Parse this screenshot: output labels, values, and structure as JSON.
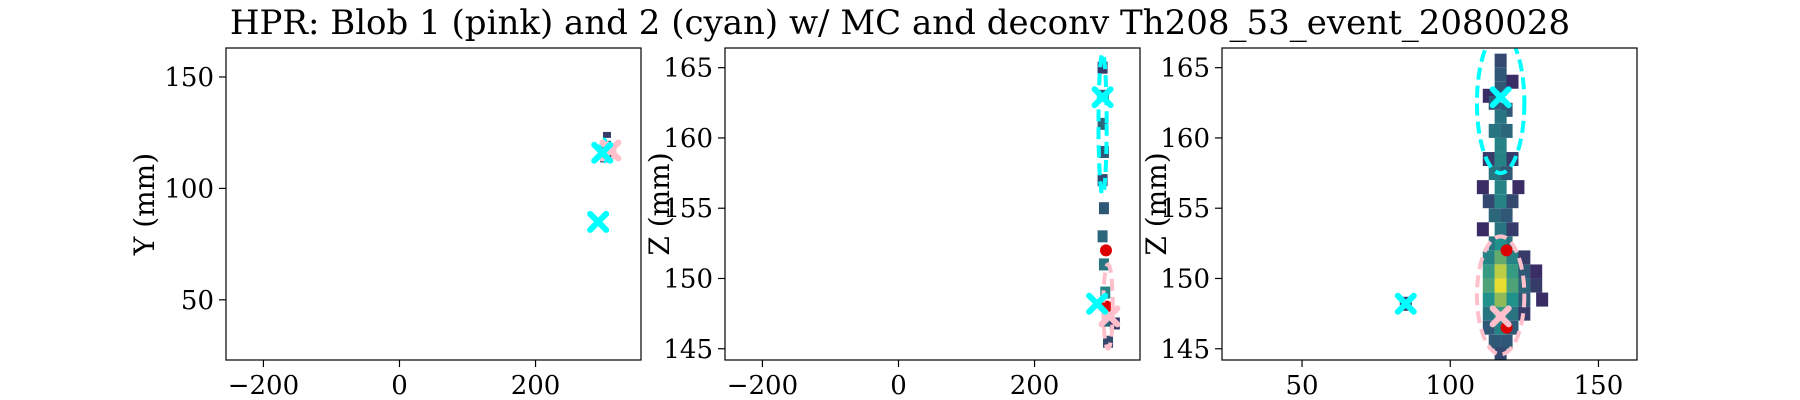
{
  "figure": {
    "title": "HPR: Blob 1 (pink) and 2 (cyan) w/ MC and deconv Th208_53_event_2080028"
  },
  "colors": {
    "blob1": "#ffc0cb",
    "blob2": "#00ffff",
    "mc": "#dd0000",
    "hits_low": "#440154",
    "hits_mid": "#21918c",
    "hits_high": "#fde725"
  },
  "chart_data": [
    {
      "type": "heatmap",
      "panel": "xy",
      "xlabel": "",
      "ylabel": "Y (mm)",
      "xlim": [
        -255,
        355
      ],
      "ylim": [
        23,
        163
      ],
      "xticks": [
        -200,
        0,
        200
      ],
      "yticks": [
        50,
        100,
        150
      ],
      "cells": [
        {
          "x": 305,
          "y": 124,
          "v": 0.2
        },
        {
          "x": 305,
          "y": 120,
          "v": 0.3
        },
        {
          "x": 303,
          "y": 116,
          "v": 0.35
        },
        {
          "x": 307,
          "y": 118,
          "v": 0.3
        },
        {
          "x": 301,
          "y": 113,
          "v": 0.2
        },
        {
          "x": 309,
          "y": 114,
          "v": 0.25
        }
      ],
      "mc_points": [
        {
          "x": 306,
          "y": 118
        }
      ],
      "blob1_centers": [
        {
          "x": 310,
          "y": 117
        }
      ],
      "blob2_centers": [
        {
          "x": 298,
          "y": 116
        },
        {
          "x": 292,
          "y": 85
        }
      ],
      "blob1_ellipses": [
        {
          "cx": 310,
          "cy": 117,
          "rx": 6,
          "ry": 4
        }
      ],
      "blob2_ellipses": [
        {
          "cx": 300,
          "cy": 117,
          "rx": 5,
          "ry": 5
        }
      ]
    },
    {
      "type": "heatmap",
      "panel": "xz",
      "xlabel": "",
      "ylabel": "Z (mm)",
      "xlim": [
        -255,
        355
      ],
      "ylim": [
        144.2,
        166.4
      ],
      "xticks": [
        -200,
        0,
        200
      ],
      "yticks": [
        145,
        150,
        155,
        160,
        165
      ],
      "cells": [
        {
          "x": 300,
          "y": 165,
          "v": 0.2
        },
        {
          "x": 302,
          "y": 163,
          "v": 0.3
        },
        {
          "x": 300,
          "y": 161,
          "v": 0.35
        },
        {
          "x": 302,
          "y": 159,
          "v": 0.3
        },
        {
          "x": 300,
          "y": 157,
          "v": 0.25
        },
        {
          "x": 302,
          "y": 155,
          "v": 0.3
        },
        {
          "x": 300,
          "y": 153,
          "v": 0.35
        },
        {
          "x": 302,
          "y": 151,
          "v": 0.4
        },
        {
          "x": 304,
          "y": 149,
          "v": 0.45
        },
        {
          "x": 306,
          "y": 147,
          "v": 0.35
        },
        {
          "x": 308,
          "y": 145.5,
          "v": 0.25
        },
        {
          "x": 318,
          "y": 146.8,
          "v": 0.2
        }
      ],
      "mc_points": [
        {
          "x": 305,
          "y": 152
        },
        {
          "x": 306,
          "y": 148
        }
      ],
      "blob1_centers": [
        {
          "x": 310,
          "y": 147.3
        }
      ],
      "blob2_centers": [
        {
          "x": 300,
          "y": 162.9
        },
        {
          "x": 292,
          "y": 148.2
        }
      ],
      "blob1_ellipses": [
        {
          "cx": 308,
          "cy": 148,
          "rx": 7,
          "ry": 3
        }
      ],
      "blob2_ellipses": [
        {
          "cx": 300,
          "cy": 161,
          "rx": 6,
          "ry": 5
        }
      ]
    },
    {
      "type": "heatmap",
      "panel": "yz",
      "xlabel": "",
      "ylabel": "Z (mm)",
      "xlim": [
        23,
        163
      ],
      "ylim": [
        144.2,
        166.4
      ],
      "xticks": [
        50,
        100,
        150
      ],
      "yticks": [
        145,
        150,
        155,
        160,
        165
      ],
      "cells": [
        {
          "x": 117,
          "y": 165.5,
          "v": 0.25
        },
        {
          "x": 117,
          "y": 164.5,
          "v": 0.3
        },
        {
          "x": 117,
          "y": 163.5,
          "v": 0.3
        },
        {
          "x": 113,
          "y": 163,
          "v": 0.15
        },
        {
          "x": 121,
          "y": 164,
          "v": 0.15
        },
        {
          "x": 115,
          "y": 162.5,
          "v": 0.3
        },
        {
          "x": 119,
          "y": 162,
          "v": 0.3
        },
        {
          "x": 117,
          "y": 161.5,
          "v": 0.4
        },
        {
          "x": 115,
          "y": 160.5,
          "v": 0.4
        },
        {
          "x": 119,
          "y": 160.5,
          "v": 0.35
        },
        {
          "x": 117,
          "y": 159.5,
          "v": 0.45
        },
        {
          "x": 113,
          "y": 158.5,
          "v": 0.2
        },
        {
          "x": 117,
          "y": 158.5,
          "v": 0.45
        },
        {
          "x": 121,
          "y": 158.5,
          "v": 0.2
        },
        {
          "x": 115,
          "y": 157.5,
          "v": 0.4
        },
        {
          "x": 119,
          "y": 157.5,
          "v": 0.3
        },
        {
          "x": 117,
          "y": 156.5,
          "v": 0.45
        },
        {
          "x": 111,
          "y": 156.5,
          "v": 0.15
        },
        {
          "x": 123,
          "y": 156.5,
          "v": 0.15
        },
        {
          "x": 113,
          "y": 155.5,
          "v": 0.25
        },
        {
          "x": 117,
          "y": 155.5,
          "v": 0.45
        },
        {
          "x": 121,
          "y": 155.5,
          "v": 0.25
        },
        {
          "x": 115,
          "y": 154.5,
          "v": 0.35
        },
        {
          "x": 119,
          "y": 154.5,
          "v": 0.3
        },
        {
          "x": 117,
          "y": 153.5,
          "v": 0.4
        },
        {
          "x": 111,
          "y": 153.5,
          "v": 0.15
        },
        {
          "x": 121,
          "y": 153.5,
          "v": 0.2
        },
        {
          "x": 115,
          "y": 152.5,
          "v": 0.4
        },
        {
          "x": 119,
          "y": 152.5,
          "v": 0.4
        },
        {
          "x": 117,
          "y": 152.5,
          "v": 0.5
        },
        {
          "x": 113,
          "y": 151.5,
          "v": 0.45
        },
        {
          "x": 117,
          "y": 151.5,
          "v": 0.65
        },
        {
          "x": 121,
          "y": 151.5,
          "v": 0.45
        },
        {
          "x": 125,
          "y": 151.5,
          "v": 0.2
        },
        {
          "x": 113,
          "y": 150.5,
          "v": 0.55
        },
        {
          "x": 117,
          "y": 150.5,
          "v": 0.85
        },
        {
          "x": 121,
          "y": 150.5,
          "v": 0.55
        },
        {
          "x": 125,
          "y": 150.5,
          "v": 0.3
        },
        {
          "x": 129,
          "y": 150.5,
          "v": 0.15
        },
        {
          "x": 113,
          "y": 149.5,
          "v": 0.6
        },
        {
          "x": 117,
          "y": 149.5,
          "v": 0.95
        },
        {
          "x": 121,
          "y": 149.5,
          "v": 0.6
        },
        {
          "x": 125,
          "y": 149.5,
          "v": 0.35
        },
        {
          "x": 129,
          "y": 149.5,
          "v": 0.2
        },
        {
          "x": 113,
          "y": 148.5,
          "v": 0.5
        },
        {
          "x": 117,
          "y": 148.5,
          "v": 0.75
        },
        {
          "x": 121,
          "y": 148.5,
          "v": 0.5
        },
        {
          "x": 125,
          "y": 148.5,
          "v": 0.3
        },
        {
          "x": 131,
          "y": 148.5,
          "v": 0.15
        },
        {
          "x": 113,
          "y": 147.5,
          "v": 0.4
        },
        {
          "x": 117,
          "y": 147.5,
          "v": 0.55
        },
        {
          "x": 121,
          "y": 147.5,
          "v": 0.4
        },
        {
          "x": 125,
          "y": 147.5,
          "v": 0.2
        },
        {
          "x": 113,
          "y": 146.5,
          "v": 0.3
        },
        {
          "x": 117,
          "y": 146.5,
          "v": 0.45
        },
        {
          "x": 121,
          "y": 146.5,
          "v": 0.3
        },
        {
          "x": 115,
          "y": 145.5,
          "v": 0.3
        },
        {
          "x": 119,
          "y": 145.5,
          "v": 0.3
        },
        {
          "x": 117,
          "y": 144.6,
          "v": 0.25
        },
        {
          "x": 85,
          "y": 148.2,
          "v": 0.2
        }
      ],
      "mc_points": [
        {
          "x": 119,
          "y": 152
        },
        {
          "x": 119,
          "y": 146.5
        }
      ],
      "blob1_centers": [
        {
          "x": 117,
          "y": 147.3
        }
      ],
      "blob2_centers": [
        {
          "x": 117,
          "y": 162.9
        },
        {
          "x": 85,
          "y": 148.2
        }
      ],
      "blob1_ellipses": [
        {
          "cx": 117,
          "cy": 148.8,
          "rx": 8,
          "ry": 4.2
        }
      ],
      "blob2_ellipses": [
        {
          "cx": 117,
          "cy": 162.5,
          "rx": 8,
          "ry": 5
        }
      ]
    }
  ]
}
